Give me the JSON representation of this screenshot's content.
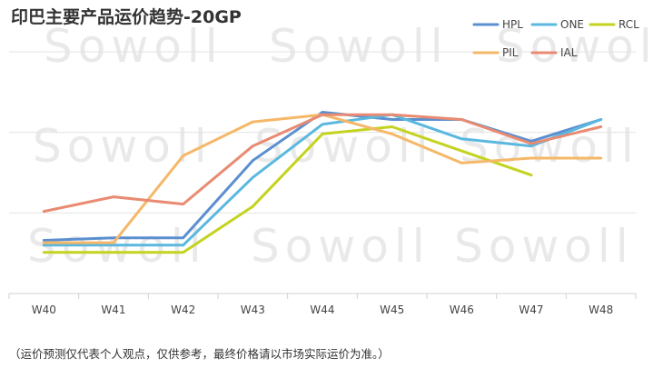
{
  "watermark": "Sowoll",
  "footnote": "（运价预测仅代表个人观点，仅供参考，最终价格请以市场实际运价为准。）",
  "chart_data": {
    "type": "line",
    "title": "印巴主要产品运价趋势-20GP",
    "xlabel": "",
    "ylabel": "",
    "categories": [
      "W40",
      "W41",
      "W42",
      "W43",
      "W44",
      "W45",
      "W46",
      "W47",
      "W48"
    ],
    "ylim": [
      0,
      100
    ],
    "grid": true,
    "legend_position": "top-right",
    "series": [
      {
        "name": "HPL",
        "color": "#5b8fd0",
        "values": [
          22,
          23,
          23,
          55,
          75,
          72,
          72,
          63,
          72
        ]
      },
      {
        "name": "ONE",
        "color": "#5ab8e0",
        "values": [
          20,
          20,
          20,
          48,
          70,
          74,
          64,
          61,
          72
        ]
      },
      {
        "name": "RCL",
        "color": "#c4d320",
        "values": [
          17,
          17,
          17,
          36,
          66,
          69,
          59,
          49,
          null
        ]
      },
      {
        "name": "PIL",
        "color": "#f5b868",
        "values": [
          21,
          21,
          57,
          71,
          74,
          66,
          54,
          56,
          56
        ]
      },
      {
        "name": "IAL",
        "color": "#e88b72",
        "values": [
          34,
          40,
          37,
          61,
          74,
          74,
          72,
          62,
          69
        ]
      }
    ]
  }
}
